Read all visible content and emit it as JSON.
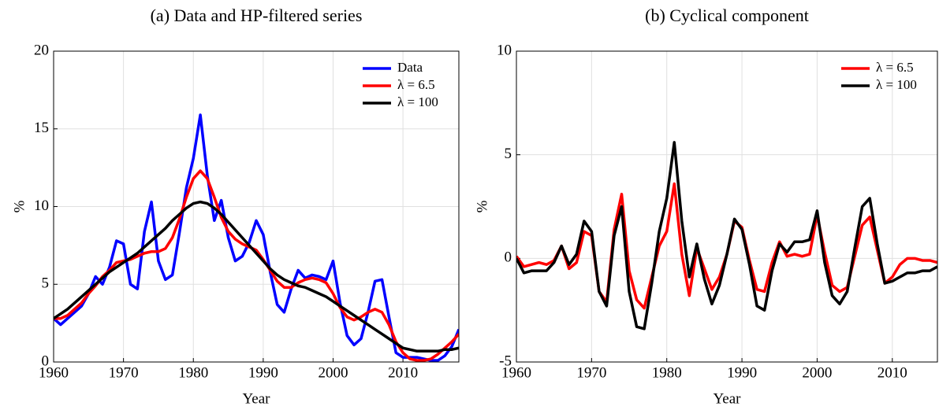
{
  "chart_data": [
    {
      "type": "line",
      "title": "(a) Data and HP-filtered series",
      "xlabel": "Year",
      "ylabel": "%",
      "x": [
        1960,
        1961,
        1962,
        1963,
        1964,
        1965,
        1966,
        1967,
        1968,
        1969,
        1970,
        1971,
        1972,
        1973,
        1974,
        1975,
        1976,
        1977,
        1978,
        1979,
        1980,
        1981,
        1982,
        1983,
        1984,
        1985,
        1986,
        1987,
        1988,
        1989,
        1990,
        1991,
        1992,
        1993,
        1994,
        1995,
        1996,
        1997,
        1998,
        1999,
        2000,
        2001,
        2002,
        2003,
        2004,
        2005,
        2006,
        2007,
        2008,
        2009,
        2010,
        2011,
        2012,
        2013,
        2014,
        2015,
        2016,
        2017,
        2018
      ],
      "series": [
        {
          "name": "Data",
          "color": "#0000ff",
          "values": [
            2.8,
            2.4,
            2.8,
            3.2,
            3.6,
            4.4,
            5.5,
            5.0,
            6.1,
            7.8,
            7.6,
            5.0,
            4.7,
            8.4,
            10.3,
            6.5,
            5.3,
            5.6,
            8.3,
            11.2,
            13.1,
            15.9,
            12.0,
            9.1,
            10.4,
            8.0,
            6.5,
            6.8,
            7.7,
            9.1,
            8.2,
            5.8,
            3.7,
            3.2,
            4.7,
            5.9,
            5.4,
            5.6,
            5.5,
            5.3,
            6.5,
            3.8,
            1.7,
            1.1,
            1.5,
            3.2,
            5.2,
            5.3,
            2.9,
            0.6,
            0.3,
            0.3,
            0.3,
            0.2,
            0.1,
            0.1,
            0.4,
            1.0,
            2.1
          ]
        },
        {
          "name": "λ = 6.5",
          "color": "#ff0000",
          "values": [
            2.8,
            2.8,
            3.0,
            3.4,
            3.8,
            4.4,
            4.9,
            5.5,
            5.9,
            6.4,
            6.5,
            6.6,
            6.8,
            7.0,
            7.1,
            7.1,
            7.3,
            8.0,
            9.2,
            10.6,
            11.8,
            12.3,
            11.8,
            10.6,
            9.3,
            8.4,
            7.9,
            7.6,
            7.4,
            7.2,
            6.6,
            5.9,
            5.2,
            4.8,
            4.8,
            5.1,
            5.3,
            5.4,
            5.3,
            5.1,
            4.4,
            3.5,
            2.9,
            2.7,
            2.9,
            3.2,
            3.4,
            3.2,
            2.4,
            1.3,
            0.6,
            0.2,
            0.1,
            0.1,
            0.2,
            0.5,
            0.9,
            1.3,
            1.8
          ]
        },
        {
          "name": "λ = 100",
          "color": "#000000",
          "values": [
            2.8,
            3.1,
            3.4,
            3.8,
            4.2,
            4.6,
            5.0,
            5.4,
            5.8,
            6.1,
            6.4,
            6.7,
            7.0,
            7.4,
            7.8,
            8.2,
            8.6,
            9.1,
            9.5,
            9.9,
            10.2,
            10.3,
            10.2,
            9.9,
            9.5,
            9.0,
            8.5,
            8.0,
            7.5,
            7.0,
            6.5,
            6.0,
            5.6,
            5.3,
            5.1,
            4.9,
            4.8,
            4.6,
            4.4,
            4.2,
            3.9,
            3.6,
            3.3,
            3.0,
            2.7,
            2.4,
            2.1,
            1.8,
            1.5,
            1.2,
            0.9,
            0.8,
            0.7,
            0.7,
            0.7,
            0.7,
            0.8,
            0.8,
            0.9
          ]
        }
      ],
      "xlim": [
        1960,
        2018
      ],
      "xticks": [
        1960,
        1970,
        1980,
        1990,
        2000,
        2010
      ],
      "ylim": [
        0,
        20
      ],
      "yticks": [
        0,
        5,
        10,
        15,
        20
      ],
      "grid": true,
      "legend": "upper right"
    },
    {
      "type": "line",
      "title": "(b) Cyclical component",
      "xlabel": "Year",
      "ylabel": "%",
      "x": [
        1960,
        1961,
        1962,
        1963,
        1964,
        1965,
        1966,
        1967,
        1968,
        1969,
        1970,
        1971,
        1972,
        1973,
        1974,
        1975,
        1976,
        1977,
        1978,
        1979,
        1980,
        1981,
        1982,
        1983,
        1984,
        1985,
        1986,
        1987,
        1988,
        1989,
        1990,
        1991,
        1992,
        1993,
        1994,
        1995,
        1996,
        1997,
        1998,
        1999,
        2000,
        2001,
        2002,
        2003,
        2004,
        2005,
        2006,
        2007,
        2008,
        2009,
        2010,
        2011,
        2012,
        2013,
        2014,
        2015,
        2016
      ],
      "series": [
        {
          "name": "λ = 6.5",
          "color": "#ff0000",
          "values": [
            0.1,
            -0.4,
            -0.3,
            -0.2,
            -0.3,
            -0.1,
            0.6,
            -0.5,
            -0.2,
            1.3,
            1.1,
            -1.6,
            -2.1,
            1.4,
            3.1,
            -0.6,
            -2.0,
            -2.4,
            -0.9,
            0.6,
            1.3,
            3.6,
            0.2,
            -1.8,
            0.5,
            -0.5,
            -1.5,
            -0.9,
            0.2,
            1.8,
            1.5,
            -0.1,
            -1.5,
            -1.6,
            -0.2,
            0.8,
            0.1,
            0.2,
            0.1,
            0.2,
            2.1,
            0.3,
            -1.3,
            -1.6,
            -1.4,
            0.1,
            1.6,
            2.0,
            0.4,
            -1.2,
            -0.9,
            -0.3,
            0.0,
            0.0,
            -0.1,
            -0.1,
            -0.2
          ]
        },
        {
          "name": "λ = 100",
          "color": "#000000",
          "values": [
            0.0,
            -0.7,
            -0.6,
            -0.6,
            -0.6,
            -0.2,
            0.6,
            -0.3,
            0.2,
            1.8,
            1.3,
            -1.6,
            -2.3,
            1.1,
            2.5,
            -1.6,
            -3.3,
            -3.4,
            -1.2,
            1.3,
            2.9,
            5.6,
            1.8,
            -0.9,
            0.7,
            -1.0,
            -2.2,
            -1.3,
            0.2,
            1.9,
            1.4,
            -0.3,
            -2.3,
            -2.5,
            -0.6,
            0.7,
            0.3,
            0.8,
            0.8,
            0.9,
            2.3,
            -0.2,
            -1.8,
            -2.2,
            -1.6,
            0.5,
            2.5,
            2.9,
            0.7,
            -1.2,
            -1.1,
            -0.9,
            -0.7,
            -0.7,
            -0.6,
            -0.6,
            -0.4
          ]
        }
      ],
      "xlim": [
        1960,
        2016
      ],
      "xticks": [
        1960,
        1970,
        1980,
        1990,
        2000,
        2010
      ],
      "ylim": [
        -5,
        10
      ],
      "yticks": [
        -5,
        0,
        5,
        10
      ],
      "grid": true,
      "legend": "upper right"
    }
  ]
}
